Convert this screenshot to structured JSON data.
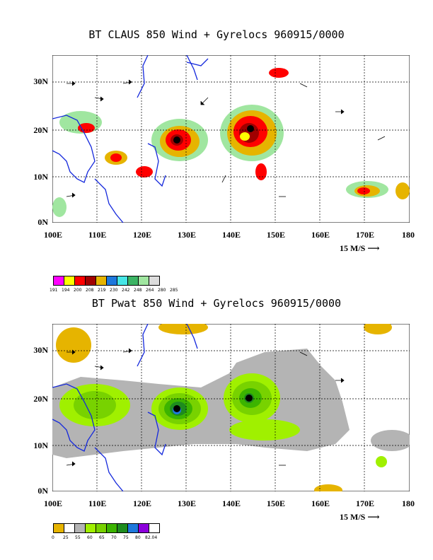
{
  "panels": [
    {
      "title": "BT CLAUS 850 Wind + Gyrelocs 960915/0000",
      "x_ticks": [
        "100E",
        "110E",
        "120E",
        "130E",
        "140E",
        "150E",
        "160E",
        "170E",
        "180"
      ],
      "y_ticks": [
        "30N",
        "20N",
        "10N",
        "0N"
      ],
      "scale_label": "15 M/S",
      "colorbar": {
        "colors": [
          "#ff00ff",
          "#ffff00",
          "#ff0000",
          "#a00000",
          "#e6b400",
          "#1e78dc",
          "#46e6e6",
          "#3cb464",
          "#a0e6a0",
          "#dcdcdc"
        ],
        "labels": [
          "191",
          "194",
          "200",
          "208",
          "219",
          "230",
          "242",
          "248",
          "264",
          "280",
          "285"
        ]
      }
    },
    {
      "title": "BT Pwat 850 Wind + Gyrelocs 960915/0000",
      "x_ticks": [
        "100E",
        "110E",
        "120E",
        "130E",
        "140E",
        "150E",
        "160E",
        "170E",
        "180"
      ],
      "y_ticks": [
        "30N",
        "20N",
        "10N",
        "0N"
      ],
      "scale_label": "15 M/S",
      "colorbar": {
        "colors": [
          "#e6b400",
          "#ffffff",
          "#b4b4b4",
          "#a0f000",
          "#78d200",
          "#3cb400",
          "#1e8c1e",
          "#1e78dc",
          "#8c00dc"
        ],
        "labels": [
          "0",
          "25",
          "55",
          "60",
          "65",
          "70",
          "75",
          "80",
          "82.04"
        ]
      }
    }
  ]
}
